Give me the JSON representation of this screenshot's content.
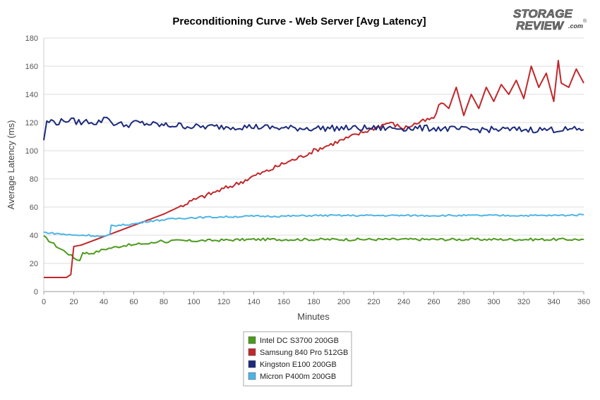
{
  "chart_data": {
    "type": "line",
    "title": "Preconditioning Curve - Web Server [Avg Latency]",
    "xlabel": "Minutes",
    "ylabel": "Average Latency (ms)",
    "xlim": [
      0,
      360
    ],
    "ylim": [
      0,
      180
    ],
    "x_ticks": [
      0,
      20,
      40,
      60,
      80,
      100,
      120,
      140,
      160,
      180,
      200,
      220,
      240,
      260,
      280,
      300,
      320,
      340,
      360
    ],
    "y_ticks": [
      0,
      20,
      40,
      60,
      80,
      100,
      120,
      140,
      160,
      180
    ],
    "grid": "horizontal",
    "legend_position": "bottom-center",
    "series": [
      {
        "name": "Intel DC S3700 200GB",
        "color": "#4c9a1c",
        "x": [
          0,
          5,
          10,
          15,
          20,
          22,
          24,
          26,
          30,
          35,
          40,
          45,
          50,
          55,
          60,
          65,
          70,
          75,
          78,
          80,
          85,
          90,
          100,
          120,
          140,
          160,
          180,
          200,
          220,
          240,
          260,
          280,
          300,
          320,
          340,
          360
        ],
        "y": [
          39,
          35,
          31,
          28,
          24,
          23,
          22,
          28,
          27,
          28,
          30,
          31,
          32,
          33,
          33,
          34,
          34,
          35,
          37,
          35,
          36,
          36,
          36,
          36.5,
          37,
          37,
          37,
          37,
          37,
          37,
          37,
          37,
          37,
          37,
          37,
          37
        ]
      },
      {
        "name": "Samsung 840 Pro 512GB",
        "color": "#c0282b",
        "x": [
          0,
          5,
          10,
          15,
          18,
          19,
          20,
          25,
          30,
          35,
          40,
          45,
          50,
          55,
          60,
          70,
          80,
          90,
          100,
          110,
          120,
          130,
          140,
          150,
          160,
          170,
          180,
          190,
          200,
          210,
          220,
          230,
          240,
          250,
          260,
          265,
          270,
          275,
          280,
          285,
          290,
          295,
          300,
          305,
          310,
          315,
          320,
          325,
          330,
          335,
          340,
          343,
          345,
          350,
          355,
          360
        ],
        "y": [
          10,
          10,
          10,
          10,
          12,
          22,
          32,
          33,
          35,
          37,
          39,
          41,
          43,
          45,
          47,
          51,
          55,
          60,
          65,
          69,
          73,
          77,
          82,
          86,
          91,
          95,
          100,
          104,
          108,
          112,
          116,
          120,
          116,
          120,
          123,
          135,
          130,
          145,
          125,
          140,
          130,
          145,
          135,
          147,
          140,
          150,
          137,
          160,
          145,
          155,
          135,
          164,
          148,
          145,
          158,
          148
        ]
      },
      {
        "name": "Kingston E100 200GB",
        "color": "#1b2a7b",
        "x": [
          0,
          2,
          5,
          10,
          15,
          20,
          25,
          30,
          35,
          40,
          42,
          45,
          50,
          55,
          60,
          70,
          80,
          90,
          100,
          120,
          140,
          160,
          180,
          200,
          220,
          240,
          260,
          280,
          300,
          320,
          340,
          360
        ],
        "y": [
          108,
          120,
          121,
          120,
          122,
          121,
          120,
          121,
          120,
          122,
          125,
          120,
          119,
          118,
          120,
          119,
          118,
          118,
          117,
          117,
          117,
          116,
          116,
          116,
          116,
          116,
          116,
          115,
          115,
          115,
          115,
          115
        ]
      },
      {
        "name": "Micron P400m 200GB",
        "color": "#4db4e6",
        "x": [
          0,
          10,
          20,
          30,
          40,
          44,
          45,
          50,
          60,
          70,
          80,
          90,
          100,
          120,
          140,
          160,
          180,
          200,
          220,
          240,
          260,
          280,
          300,
          320,
          340,
          360
        ],
        "y": [
          42,
          41,
          40,
          40,
          39,
          40,
          47,
          47,
          48,
          50,
          51,
          52,
          52.5,
          53,
          53.5,
          53.5,
          54,
          54,
          54,
          54,
          54,
          54,
          54,
          54,
          54,
          54.5
        ]
      }
    ]
  },
  "logo": {
    "line1": "STORAGE",
    "line2": "REVIEW",
    "suffix": ".com",
    "mark": "®"
  }
}
